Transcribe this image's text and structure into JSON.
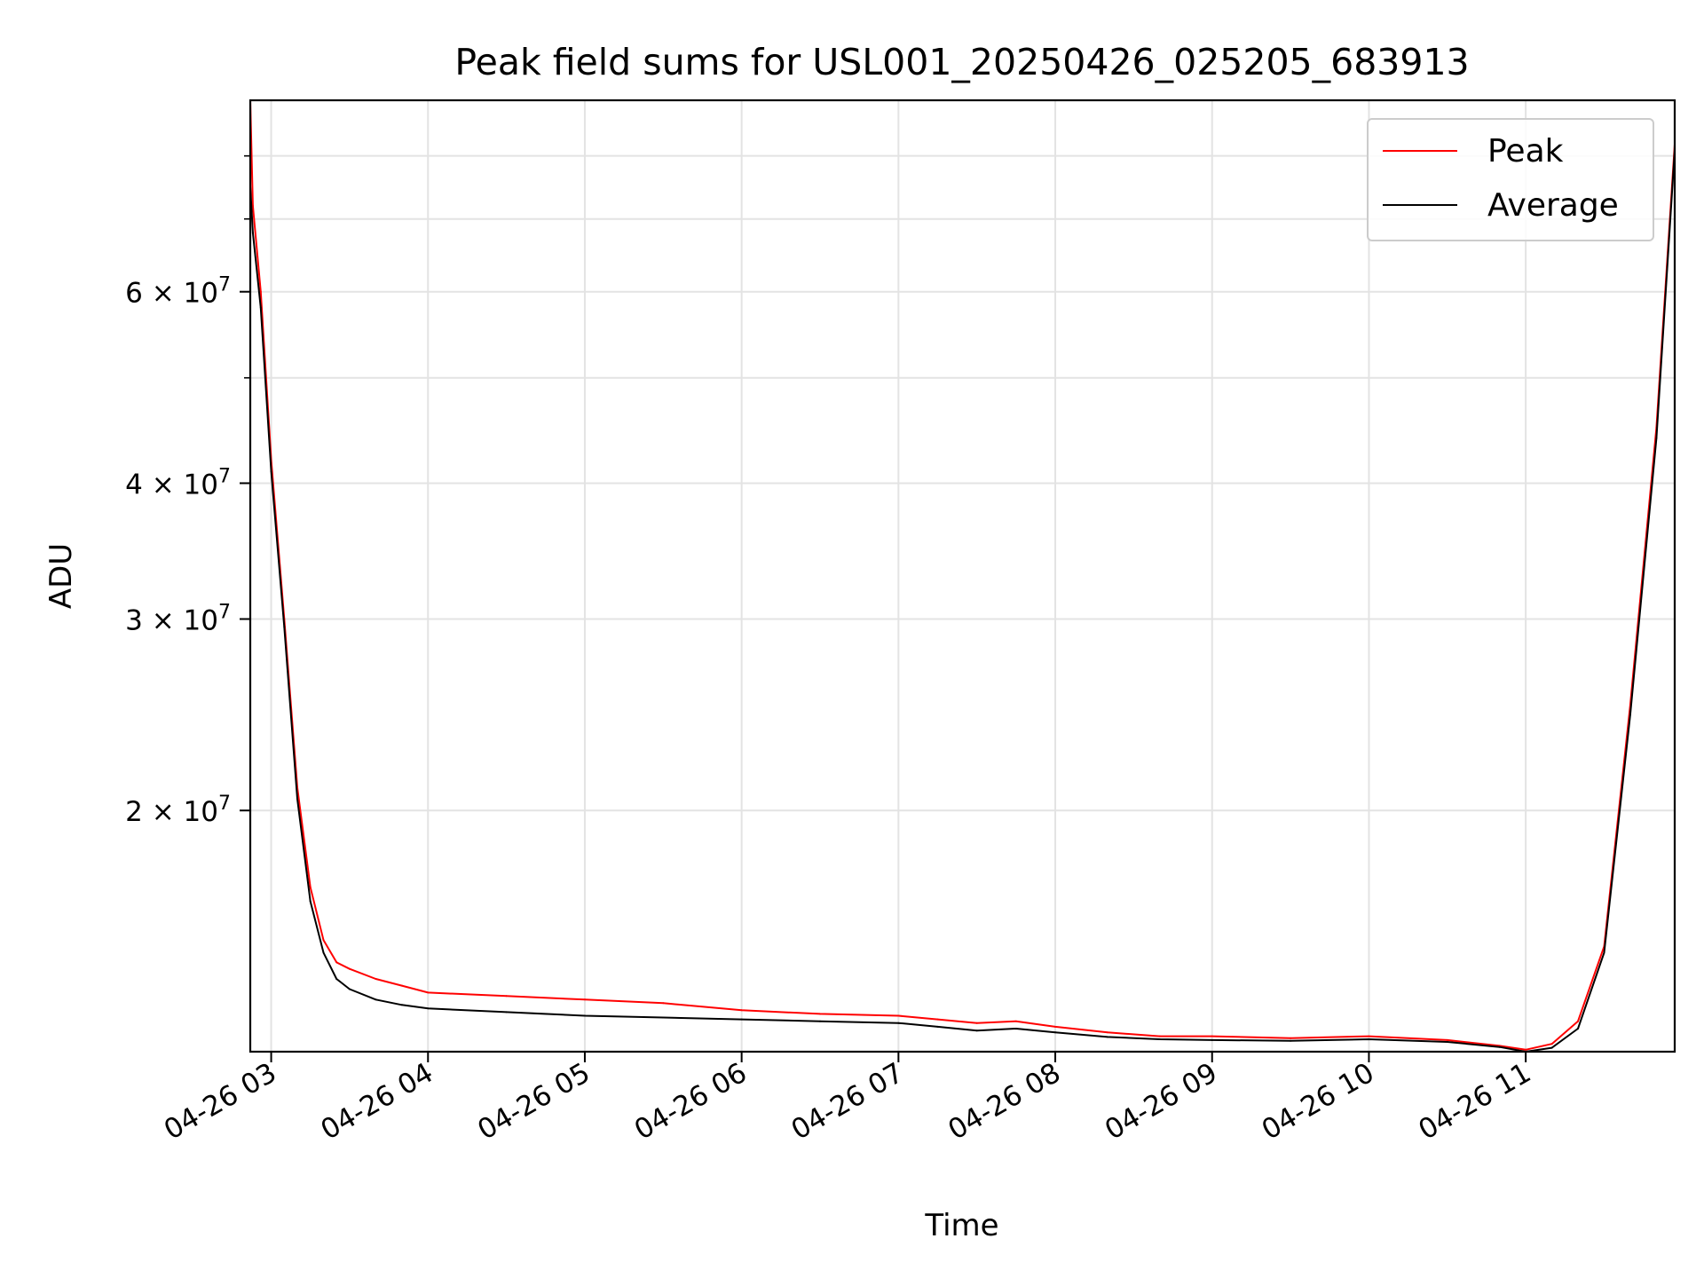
{
  "chart_data": {
    "type": "line",
    "title": "Peak field sums for USL001_20250426_025205_683913",
    "xlabel": "Time",
    "ylabel": "ADU",
    "y_scale": "log",
    "grid": true,
    "legend_position": "top-right",
    "xlim": [
      "2025-04-26 02:52",
      "2025-04-26 11:57"
    ],
    "ylim": [
      12000000,
      90000000
    ],
    "x_ticks": [
      {
        "value": "2025-04-26 03:00",
        "label": "04-26 03"
      },
      {
        "value": "2025-04-26 04:00",
        "label": "04-26 04"
      },
      {
        "value": "2025-04-26 05:00",
        "label": "04-26 05"
      },
      {
        "value": "2025-04-26 06:00",
        "label": "04-26 06"
      },
      {
        "value": "2025-04-26 07:00",
        "label": "04-26 07"
      },
      {
        "value": "2025-04-26 08:00",
        "label": "04-26 08"
      },
      {
        "value": "2025-04-26 09:00",
        "label": "04-26 09"
      },
      {
        "value": "2025-04-26 10:00",
        "label": "04-26 10"
      },
      {
        "value": "2025-04-26 11:00",
        "label": "04-26 11"
      }
    ],
    "y_ticks": [
      {
        "value": 20000000,
        "mantissa": "2",
        "times": "×",
        "base": "10",
        "exponent": "7"
      },
      {
        "value": 30000000,
        "mantissa": "3",
        "times": "×",
        "base": "10",
        "exponent": "7"
      },
      {
        "value": 40000000,
        "mantissa": "4",
        "times": "×",
        "base": "10",
        "exponent": "7"
      },
      {
        "value": 60000000,
        "mantissa": "6",
        "times": "×",
        "base": "10",
        "exponent": "7"
      }
    ],
    "y_minor_ticks": [
      50000000,
      70000000,
      80000000
    ],
    "series": [
      {
        "name": "Peak",
        "color": "#ff0000",
        "x": [
          "2025-04-26 02:52",
          "2025-04-26 02:53",
          "2025-04-26 02:56",
          "2025-04-26 03:00",
          "2025-04-26 03:05",
          "2025-04-26 03:10",
          "2025-04-26 03:15",
          "2025-04-26 03:20",
          "2025-04-26 03:25",
          "2025-04-26 03:30",
          "2025-04-26 03:40",
          "2025-04-26 03:50",
          "2025-04-26 04:00",
          "2025-04-26 04:30",
          "2025-04-26 05:00",
          "2025-04-26 05:30",
          "2025-04-26 06:00",
          "2025-04-26 06:30",
          "2025-04-26 07:00",
          "2025-04-26 07:15",
          "2025-04-26 07:30",
          "2025-04-26 07:45",
          "2025-04-26 08:00",
          "2025-04-26 08:20",
          "2025-04-26 08:40",
          "2025-04-26 09:00",
          "2025-04-26 09:30",
          "2025-04-26 10:00",
          "2025-04-26 10:30",
          "2025-04-26 10:50",
          "2025-04-26 11:00",
          "2025-04-26 11:10",
          "2025-04-26 11:20",
          "2025-04-26 11:30",
          "2025-04-26 11:40",
          "2025-04-26 11:50",
          "2025-04-26 11:57"
        ],
        "values": [
          90000000,
          72000000,
          60000000,
          42000000,
          30000000,
          21000000,
          17000000,
          15200000,
          14500000,
          14300000,
          14000000,
          13800000,
          13600000,
          13500000,
          13400000,
          13300000,
          13100000,
          13000000,
          12950000,
          12850000,
          12750000,
          12800000,
          12650000,
          12500000,
          12400000,
          12400000,
          12350000,
          12400000,
          12300000,
          12150000,
          12050000,
          12200000,
          12800000,
          15000000,
          25000000,
          45000000,
          82000000
        ]
      },
      {
        "name": "Average",
        "color": "#000000",
        "x": [
          "2025-04-26 02:52",
          "2025-04-26 02:53",
          "2025-04-26 02:56",
          "2025-04-26 03:00",
          "2025-04-26 03:05",
          "2025-04-26 03:10",
          "2025-04-26 03:15",
          "2025-04-26 03:20",
          "2025-04-26 03:25",
          "2025-04-26 03:30",
          "2025-04-26 03:40",
          "2025-04-26 03:50",
          "2025-04-26 04:00",
          "2025-04-26 04:30",
          "2025-04-26 05:00",
          "2025-04-26 05:30",
          "2025-04-26 06:00",
          "2025-04-26 06:30",
          "2025-04-26 07:00",
          "2025-04-26 07:15",
          "2025-04-26 07:30",
          "2025-04-26 07:45",
          "2025-04-26 08:00",
          "2025-04-26 08:20",
          "2025-04-26 08:40",
          "2025-04-26 09:00",
          "2025-04-26 09:30",
          "2025-04-26 10:00",
          "2025-04-26 10:30",
          "2025-04-26 10:50",
          "2025-04-26 11:00",
          "2025-04-26 11:10",
          "2025-04-26 11:20",
          "2025-04-26 11:30",
          "2025-04-26 11:40",
          "2025-04-26 11:50",
          "2025-04-26 11:57"
        ],
        "values": [
          75000000,
          68000000,
          58000000,
          41000000,
          29500000,
          20500000,
          16500000,
          14800000,
          14000000,
          13700000,
          13400000,
          13250000,
          13150000,
          13050000,
          12950000,
          12900000,
          12850000,
          12800000,
          12750000,
          12650000,
          12550000,
          12600000,
          12500000,
          12380000,
          12320000,
          12300000,
          12280000,
          12320000,
          12250000,
          12120000,
          12000000,
          12100000,
          12600000,
          14800000,
          24500000,
          44000000,
          81000000
        ]
      }
    ]
  }
}
